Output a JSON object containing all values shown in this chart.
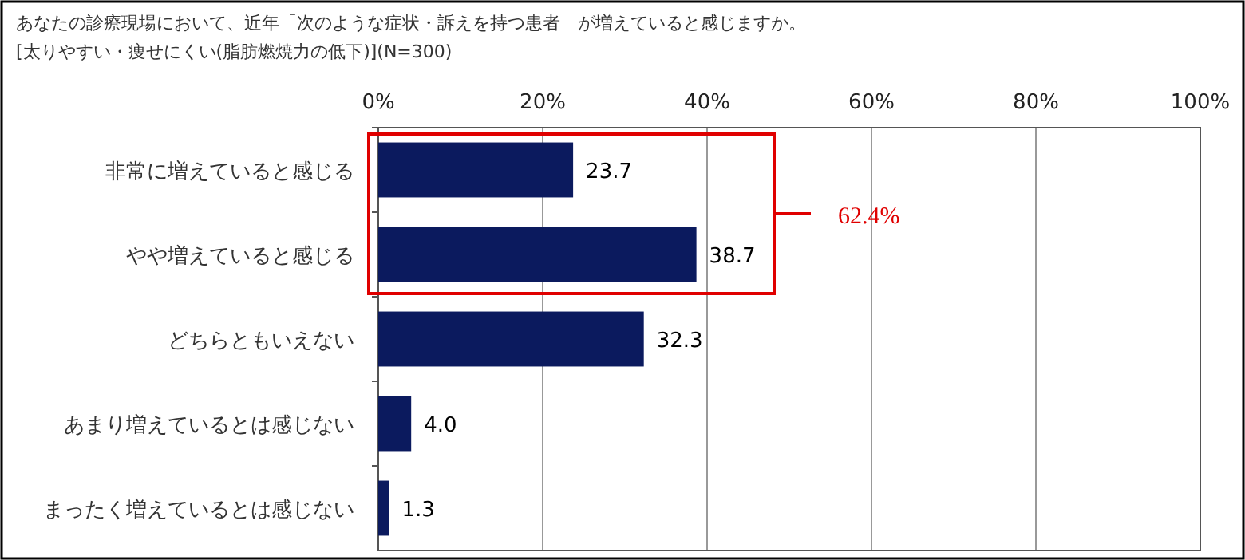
{
  "chart_data": {
    "type": "bar",
    "orientation": "horizontal",
    "title": "あなたの診療現場において、近年「次のような症状・訴えを持つ患者」が増えていると感じますか。",
    "subtitle": "[太りやすい・痩せにくい(脂肪燃焼力の低下)](N=300)",
    "categories": [
      "非常に増えていると感じる",
      "やや増えていると感じる",
      "どちらともいえない",
      "あまり増えているとは感じない",
      "まったく増えているとは感じない"
    ],
    "values": [
      23.7,
      38.7,
      32.3,
      4.0,
      1.3
    ],
    "value_labels": [
      "23.7",
      "38.7",
      "32.3",
      "4.0",
      "1.3"
    ],
    "color": "#0b1a5e",
    "xlim": [
      0,
      100
    ],
    "xticks": [
      {
        "value": 0,
        "label": "0%"
      },
      {
        "value": 20,
        "label": "20%"
      },
      {
        "value": 40,
        "label": "40%"
      },
      {
        "value": 60,
        "label": "60%"
      },
      {
        "value": 80,
        "label": "80%"
      },
      {
        "value": 100,
        "label": "100%"
      }
    ],
    "grid": "x",
    "annotations": [
      "62.4%"
    ]
  }
}
